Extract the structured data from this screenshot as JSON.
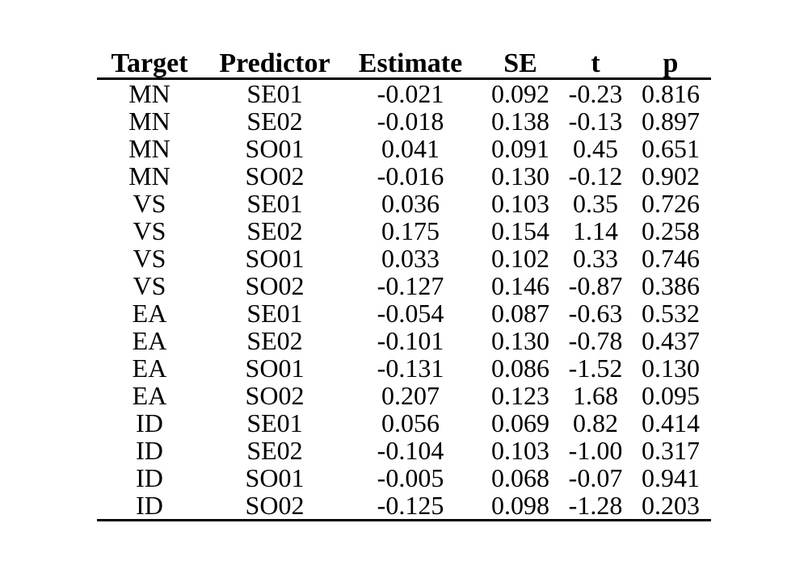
{
  "table": {
    "headers": {
      "target": "Target",
      "predictor": "Predictor",
      "estimate": "Estimate",
      "se": "SE",
      "t": "t",
      "p": "p"
    },
    "rows": [
      {
        "target": "MN",
        "predictor": "SE01",
        "estimate": "-0.021",
        "se": "0.092",
        "t": "-0.23",
        "p": "0.816"
      },
      {
        "target": "MN",
        "predictor": "SE02",
        "estimate": "-0.018",
        "se": "0.138",
        "t": "-0.13",
        "p": "0.897"
      },
      {
        "target": "MN",
        "predictor": "SO01",
        "estimate": "0.041",
        "se": "0.091",
        "t": "0.45",
        "p": "0.651"
      },
      {
        "target": "MN",
        "predictor": "SO02",
        "estimate": "-0.016",
        "se": "0.130",
        "t": "-0.12",
        "p": "0.902"
      },
      {
        "target": "VS",
        "predictor": "SE01",
        "estimate": "0.036",
        "se": "0.103",
        "t": "0.35",
        "p": "0.726"
      },
      {
        "target": "VS",
        "predictor": "SE02",
        "estimate": "0.175",
        "se": "0.154",
        "t": "1.14",
        "p": "0.258"
      },
      {
        "target": "VS",
        "predictor": "SO01",
        "estimate": "0.033",
        "se": "0.102",
        "t": "0.33",
        "p": "0.746"
      },
      {
        "target": "VS",
        "predictor": "SO02",
        "estimate": "-0.127",
        "se": "0.146",
        "t": "-0.87",
        "p": "0.386"
      },
      {
        "target": "EA",
        "predictor": "SE01",
        "estimate": "-0.054",
        "se": "0.087",
        "t": "-0.63",
        "p": "0.532"
      },
      {
        "target": "EA",
        "predictor": "SE02",
        "estimate": "-0.101",
        "se": "0.130",
        "t": "-0.78",
        "p": "0.437"
      },
      {
        "target": "EA",
        "predictor": "SO01",
        "estimate": "-0.131",
        "se": "0.086",
        "t": "-1.52",
        "p": "0.130"
      },
      {
        "target": "EA",
        "predictor": "SO02",
        "estimate": "0.207",
        "se": "0.123",
        "t": "1.68",
        "p": "0.095"
      },
      {
        "target": "ID",
        "predictor": "SE01",
        "estimate": "0.056",
        "se": "0.069",
        "t": "0.82",
        "p": "0.414"
      },
      {
        "target": "ID",
        "predictor": "SE02",
        "estimate": "-0.104",
        "se": "0.103",
        "t": "-1.00",
        "p": "0.317"
      },
      {
        "target": "ID",
        "predictor": "SO01",
        "estimate": "-0.005",
        "se": "0.068",
        "t": "-0.07",
        "p": "0.941"
      },
      {
        "target": "ID",
        "predictor": "SO02",
        "estimate": "-0.125",
        "se": "0.098",
        "t": "-1.28",
        "p": "0.203"
      }
    ]
  }
}
